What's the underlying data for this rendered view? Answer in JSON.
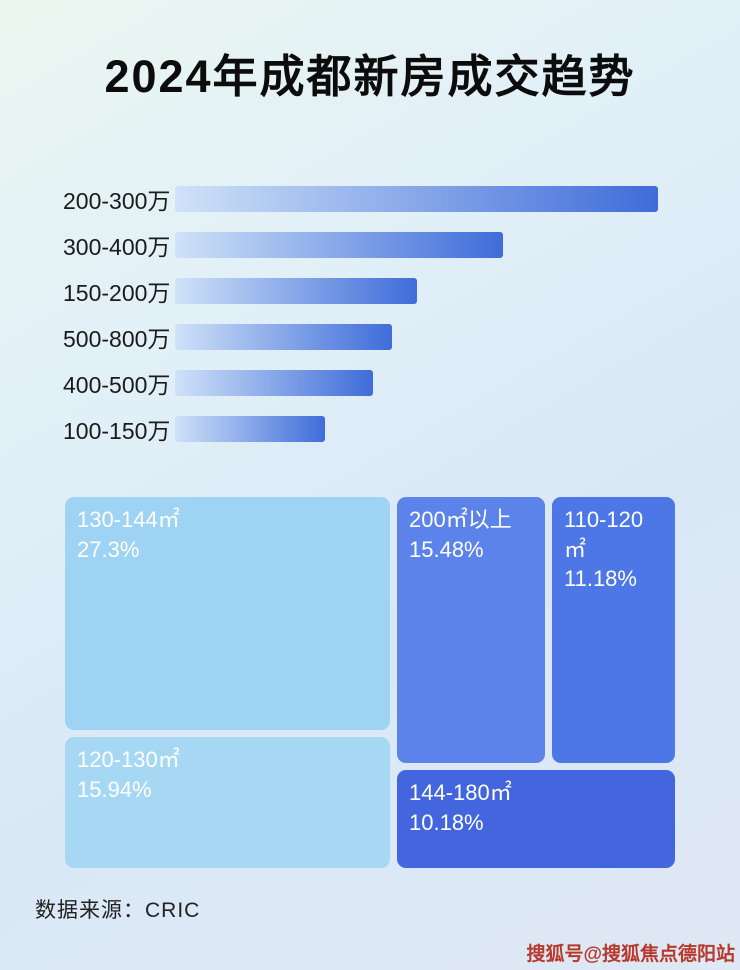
{
  "page": {
    "title": "2024年成都新房成交趋势",
    "source": "数据来源：CRIC",
    "watermark": "搜狐号@搜狐焦点德阳站"
  },
  "chart_data": [
    {
      "type": "bar",
      "title": "2024年成都新房成交趋势",
      "orientation": "horizontal",
      "categories": [
        "200-300万",
        "300-400万",
        "150-200万",
        "500-800万",
        "400-500万",
        "100-150万"
      ],
      "values": [
        100,
        68,
        50,
        45,
        41,
        31
      ],
      "value_note": "bars carry no printed numbers; values are relative lengths as % of the longest bar",
      "bar_gradient": [
        "#cfe2f8",
        "#3f6cd9"
      ],
      "grid": false,
      "legend": false
    },
    {
      "type": "treemap",
      "items": [
        {
          "label": "130-144㎡",
          "value": "27.3%",
          "color": "#9ed3f3"
        },
        {
          "label": "200㎡以上",
          "value": "15.48%",
          "color": "#5b83e9"
        },
        {
          "label": "110-120㎡",
          "value": "11.18%",
          "color": "#4d77e6"
        },
        {
          "label": "120-130㎡",
          "value": "15.94%",
          "color": "#a6d8f4"
        },
        {
          "label": "144-180㎡",
          "value": "10.18%",
          "color": "#4365de"
        }
      ]
    }
  ]
}
